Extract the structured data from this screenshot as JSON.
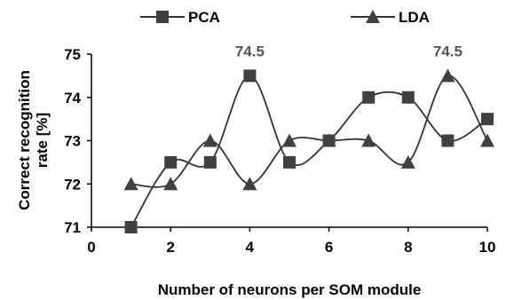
{
  "chart_data": {
    "type": "line",
    "xlabel": "Number of neurons per SOM module",
    "ylabel": [
      "Correct recognition",
      "rate [%]"
    ],
    "xlim": [
      0,
      10
    ],
    "ylim": [
      71,
      75
    ],
    "x_ticks": [
      0,
      2,
      4,
      6,
      8,
      10
    ],
    "y_ticks": [
      71,
      72,
      73,
      74,
      75
    ],
    "grid": false,
    "legend_position": "top",
    "x": [
      1,
      2,
      3,
      4,
      5,
      6,
      7,
      8,
      9,
      10
    ],
    "series": [
      {
        "name": "PCA",
        "marker": "square",
        "values": [
          71,
          72.5,
          72.5,
          74.5,
          72.5,
          73,
          74,
          74,
          73,
          73.5
        ]
      },
      {
        "name": "LDA",
        "marker": "triangle",
        "values": [
          72,
          72,
          73,
          72,
          73,
          73,
          73,
          72.5,
          74.5,
          73
        ]
      }
    ],
    "annotations": [
      {
        "text": "74.5",
        "x": 4,
        "y": 74.5
      },
      {
        "text": "74.5",
        "x": 9,
        "y": 74.5
      }
    ]
  }
}
